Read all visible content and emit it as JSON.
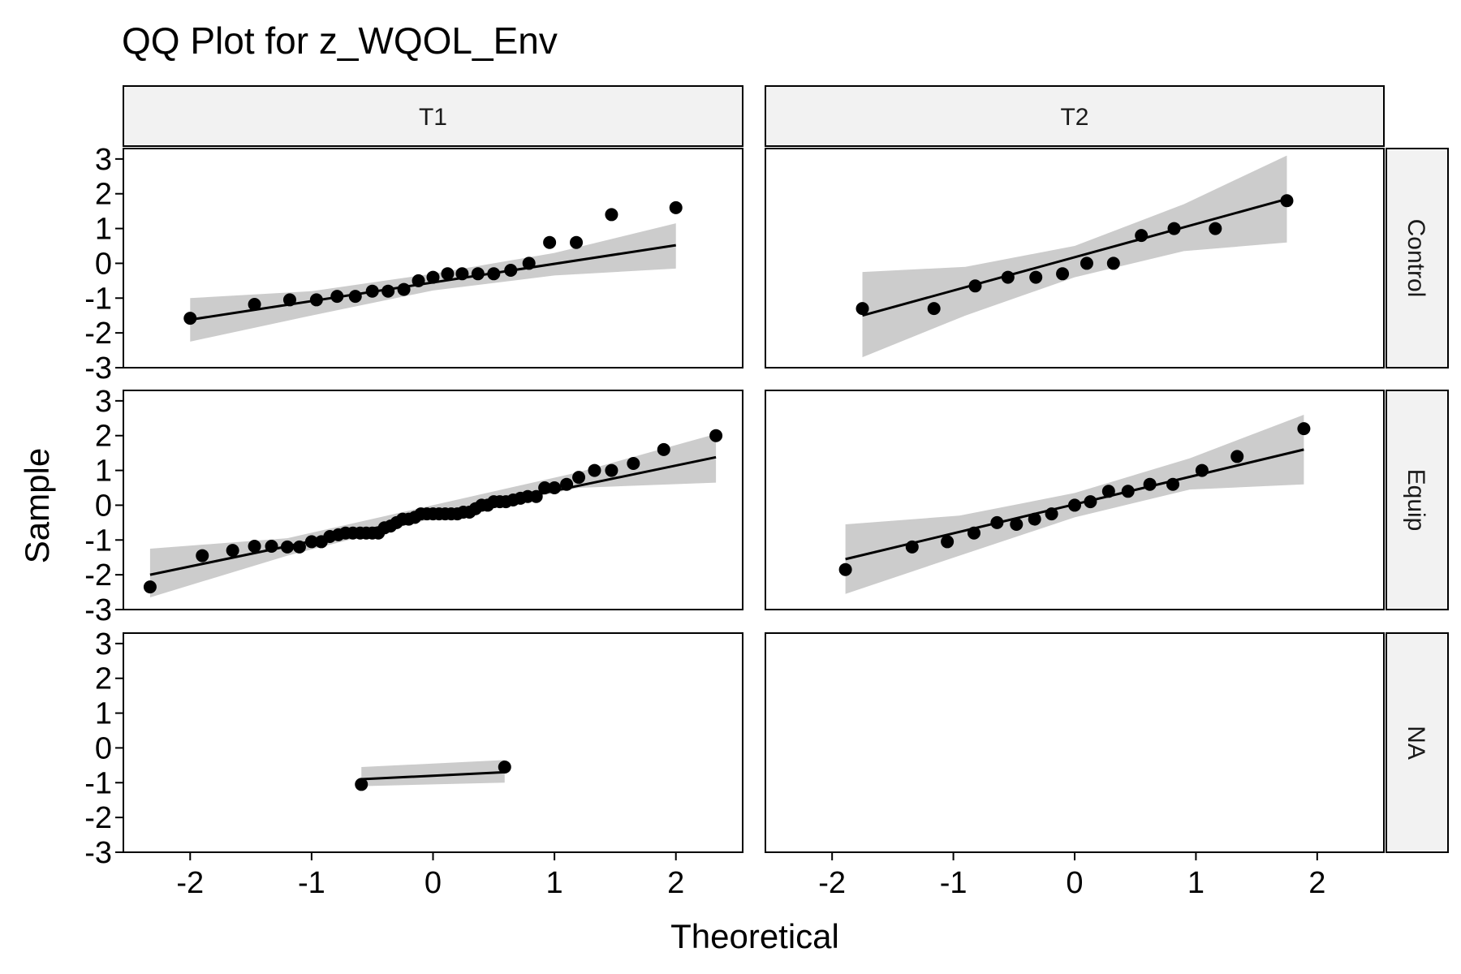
{
  "chart_data": {
    "type": "scatter",
    "title": "QQ Plot for z_WQOL_Env",
    "xlabel": "Theoretical",
    "ylabel": "Sample",
    "xlim": [
      -2.55,
      2.55
    ],
    "ylim": [
      -3,
      3.3
    ],
    "x_ticks": [
      -2,
      -1,
      0,
      1,
      2
    ],
    "x_tick_labels": [
      "-2",
      "-1",
      "0",
      "1",
      "2"
    ],
    "y_ticks": [
      -3,
      -2,
      -1,
      0,
      1,
      2,
      3
    ],
    "y_tick_labels": [
      "-3",
      "-2",
      "-1",
      "0",
      "1",
      "2",
      "3"
    ],
    "columns": [
      "T1",
      "T2"
    ],
    "rows": [
      "Control",
      "Equip",
      "NA"
    ],
    "panels": [
      {
        "col": "T1",
        "row": "Control",
        "points": [
          [
            -2.0,
            -1.58
          ],
          [
            -1.47,
            -1.18
          ],
          [
            -1.18,
            -1.05
          ],
          [
            -0.96,
            -1.05
          ],
          [
            -0.79,
            -0.95
          ],
          [
            -0.64,
            -0.95
          ],
          [
            -0.5,
            -0.8
          ],
          [
            -0.37,
            -0.8
          ],
          [
            -0.24,
            -0.75
          ],
          [
            -0.12,
            -0.5
          ],
          [
            0.0,
            -0.4
          ],
          [
            0.12,
            -0.3
          ],
          [
            0.24,
            -0.3
          ],
          [
            0.37,
            -0.3
          ],
          [
            0.5,
            -0.3
          ],
          [
            0.64,
            -0.2
          ],
          [
            0.79,
            0.0
          ],
          [
            0.96,
            0.6
          ],
          [
            1.18,
            0.6
          ],
          [
            1.47,
            1.4
          ],
          [
            2.0,
            1.6
          ]
        ],
        "line": [
          [
            -2.0,
            -1.62
          ],
          [
            2.0,
            0.52
          ]
        ],
        "band_lower": [
          [
            -2.0,
            -2.25
          ],
          [
            -1.0,
            -1.5
          ],
          [
            0.0,
            -0.78
          ],
          [
            1.0,
            -0.35
          ],
          [
            2.0,
            -0.15
          ]
        ],
        "band_upper": [
          [
            -2.0,
            -1.0
          ],
          [
            -1.0,
            -0.8
          ],
          [
            0.0,
            -0.3
          ],
          [
            1.0,
            0.3
          ],
          [
            2.0,
            1.15
          ]
        ]
      },
      {
        "col": "T2",
        "row": "Control",
        "points": [
          [
            -1.75,
            -1.3
          ],
          [
            -1.16,
            -1.3
          ],
          [
            -0.82,
            -0.65
          ],
          [
            -0.55,
            -0.4
          ],
          [
            -0.32,
            -0.4
          ],
          [
            -0.1,
            -0.3
          ],
          [
            0.1,
            0.0
          ],
          [
            0.32,
            0.0
          ],
          [
            0.55,
            0.8
          ],
          [
            0.82,
            1.0
          ],
          [
            1.16,
            1.0
          ],
          [
            1.75,
            1.8
          ]
        ],
        "line": [
          [
            -1.75,
            -1.5
          ],
          [
            1.75,
            1.85
          ]
        ],
        "band_lower": [
          [
            -1.75,
            -2.7
          ],
          [
            -0.9,
            -1.5
          ],
          [
            0.0,
            -0.4
          ],
          [
            0.9,
            0.35
          ],
          [
            1.75,
            0.6
          ]
        ],
        "band_upper": [
          [
            -1.75,
            -0.25
          ],
          [
            -0.9,
            -0.1
          ],
          [
            0.0,
            0.5
          ],
          [
            0.9,
            1.7
          ],
          [
            1.75,
            3.1
          ]
        ]
      },
      {
        "col": "T1",
        "row": "Equip",
        "points": [
          [
            -2.33,
            -2.35
          ],
          [
            -1.9,
            -1.45
          ],
          [
            -1.65,
            -1.3
          ],
          [
            -1.47,
            -1.18
          ],
          [
            -1.33,
            -1.18
          ],
          [
            -1.2,
            -1.2
          ],
          [
            -1.1,
            -1.2
          ],
          [
            -1.0,
            -1.05
          ],
          [
            -0.92,
            -1.05
          ],
          [
            -0.85,
            -0.9
          ],
          [
            -0.78,
            -0.85
          ],
          [
            -0.72,
            -0.8
          ],
          [
            -0.66,
            -0.8
          ],
          [
            -0.6,
            -0.8
          ],
          [
            -0.55,
            -0.8
          ],
          [
            -0.5,
            -0.8
          ],
          [
            -0.45,
            -0.8
          ],
          [
            -0.4,
            -0.65
          ],
          [
            -0.35,
            -0.6
          ],
          [
            -0.3,
            -0.5
          ],
          [
            -0.25,
            -0.4
          ],
          [
            -0.2,
            -0.4
          ],
          [
            -0.15,
            -0.35
          ],
          [
            -0.1,
            -0.25
          ],
          [
            -0.05,
            -0.25
          ],
          [
            0.0,
            -0.25
          ],
          [
            0.05,
            -0.25
          ],
          [
            0.1,
            -0.25
          ],
          [
            0.15,
            -0.25
          ],
          [
            0.2,
            -0.25
          ],
          [
            0.25,
            -0.2
          ],
          [
            0.3,
            -0.2
          ],
          [
            0.35,
            -0.1
          ],
          [
            0.4,
            0.0
          ],
          [
            0.45,
            0.0
          ],
          [
            0.5,
            0.1
          ],
          [
            0.55,
            0.1
          ],
          [
            0.6,
            0.1
          ],
          [
            0.66,
            0.15
          ],
          [
            0.72,
            0.2
          ],
          [
            0.78,
            0.25
          ],
          [
            0.85,
            0.25
          ],
          [
            0.92,
            0.5
          ],
          [
            1.0,
            0.5
          ],
          [
            1.1,
            0.6
          ],
          [
            1.2,
            0.8
          ],
          [
            1.33,
            1.0
          ],
          [
            1.47,
            1.0
          ],
          [
            1.65,
            1.2
          ],
          [
            1.9,
            1.6
          ],
          [
            2.33,
            2.0
          ]
        ],
        "line": [
          [
            -2.33,
            -2.0
          ],
          [
            2.33,
            1.38
          ]
        ],
        "band_lower": [
          [
            -2.33,
            -2.65
          ],
          [
            -1.2,
            -1.45
          ],
          [
            0.0,
            -0.38
          ],
          [
            1.2,
            0.5
          ],
          [
            2.33,
            0.65
          ]
        ],
        "band_upper": [
          [
            -2.33,
            -1.25
          ],
          [
            -1.2,
            -0.95
          ],
          [
            0.0,
            0.0
          ],
          [
            1.2,
            0.95
          ],
          [
            2.33,
            2.05
          ]
        ]
      },
      {
        "col": "T2",
        "row": "Equip",
        "points": [
          [
            -1.89,
            -1.85
          ],
          [
            -1.34,
            -1.2
          ],
          [
            -1.05,
            -1.05
          ],
          [
            -0.83,
            -0.8
          ],
          [
            -0.64,
            -0.5
          ],
          [
            -0.48,
            -0.55
          ],
          [
            -0.33,
            -0.4
          ],
          [
            -0.19,
            -0.25
          ],
          [
            0.0,
            0.0
          ],
          [
            0.13,
            0.1
          ],
          [
            0.28,
            0.4
          ],
          [
            0.44,
            0.4
          ],
          [
            0.62,
            0.6
          ],
          [
            0.81,
            0.6
          ],
          [
            1.05,
            1.0
          ],
          [
            1.34,
            1.4
          ],
          [
            1.89,
            2.2
          ]
        ],
        "line": [
          [
            -1.89,
            -1.55
          ],
          [
            1.89,
            1.6
          ]
        ],
        "band_lower": [
          [
            -1.89,
            -2.55
          ],
          [
            -0.95,
            -1.45
          ],
          [
            0.0,
            -0.35
          ],
          [
            0.95,
            0.45
          ],
          [
            1.89,
            0.6
          ]
        ],
        "band_upper": [
          [
            -1.89,
            -0.55
          ],
          [
            -0.95,
            -0.3
          ],
          [
            0.0,
            0.35
          ],
          [
            0.95,
            1.35
          ],
          [
            1.89,
            2.6
          ]
        ]
      },
      {
        "col": "T1",
        "row": "NA",
        "points": [
          [
            -0.59,
            -1.05
          ],
          [
            0.59,
            -0.55
          ]
        ],
        "line": [
          [
            -0.59,
            -0.9
          ],
          [
            0.59,
            -0.7
          ]
        ],
        "band_lower": [
          [
            -0.59,
            -1.1
          ],
          [
            0.59,
            -1.0
          ]
        ],
        "band_upper": [
          [
            -0.59,
            -0.55
          ],
          [
            0.59,
            -0.35
          ]
        ]
      },
      {
        "col": "T2",
        "row": "NA",
        "points": [],
        "line": [],
        "band_lower": [],
        "band_upper": []
      }
    ],
    "grid": false,
    "legend": "none"
  }
}
